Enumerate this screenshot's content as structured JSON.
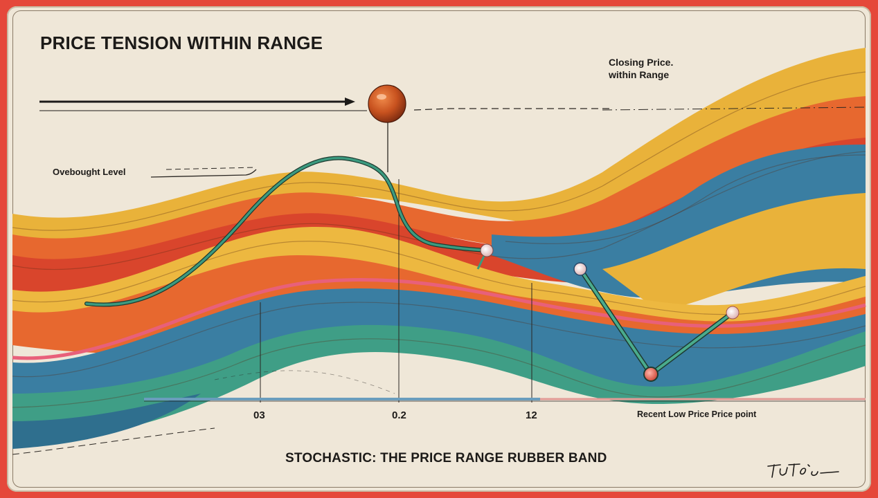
{
  "title": "PRICE TENSION WITHIN RANGE",
  "annotations": {
    "closing_price_line1": "Closing Price.",
    "closing_price_line2": "within Range",
    "overbought": "Ovebought Level",
    "recent_low": "Recent Low Price Price point"
  },
  "axis_ticks": [
    "03",
    "0.2",
    "12"
  ],
  "bottom_title": "STOCHASTIC: THE PRICE RANGE RUBBER BAND",
  "signature": "TUTo:o",
  "colors": {
    "outer_frame": "#e5483a",
    "background": "#efe7d8",
    "band_yellow": "#e9b23a",
    "band_orange": "#e7682f",
    "band_red": "#d9452c",
    "band_blue": "#3a7ea2",
    "band_teal": "#3f9e86",
    "band_pink": "#e8607a",
    "stochastic_line": "#3c9a7f",
    "closing_ball": "#c8521f"
  }
}
